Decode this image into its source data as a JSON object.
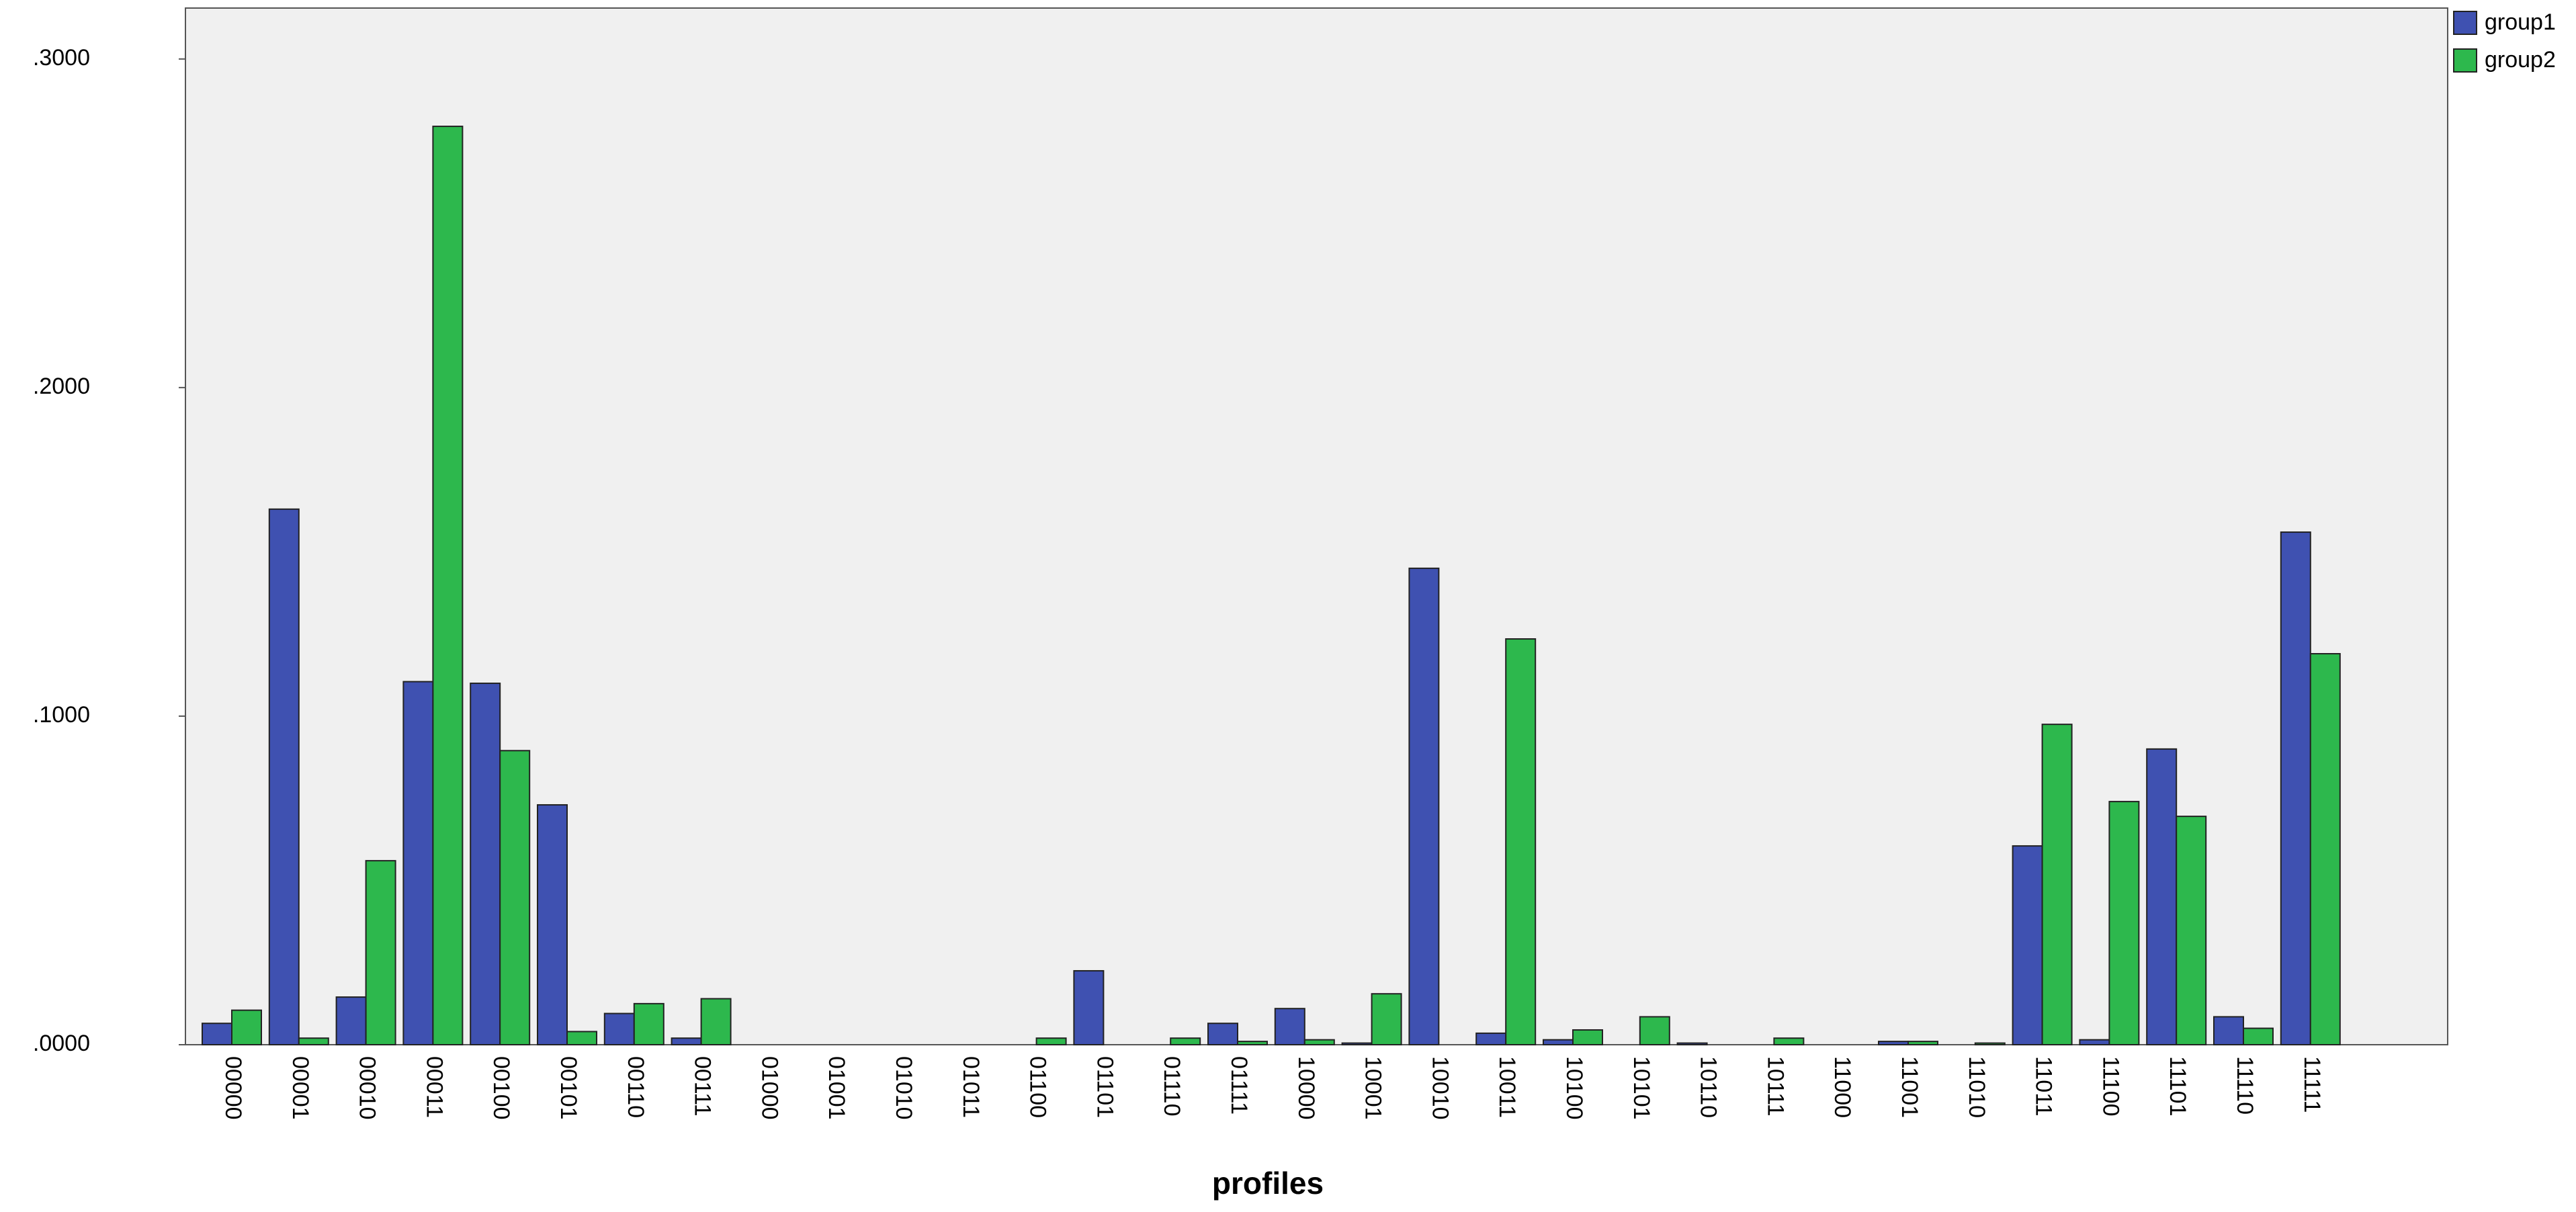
{
  "chart_data": {
    "type": "bar",
    "x_label": "profiles",
    "categories": [
      "00000",
      "00001",
      "00010",
      "00011",
      "00100",
      "00101",
      "00110",
      "00111",
      "01000",
      "01001",
      "01010",
      "01011",
      "01100",
      "01101",
      "01110",
      "01111",
      "10000",
      "10001",
      "10010",
      "10011",
      "10100",
      "10101",
      "10110",
      "10111",
      "11000",
      "11001",
      "11010",
      "11011",
      "11100",
      "11101",
      "11110",
      "11111"
    ],
    "series": [
      {
        "name": "group1",
        "color": "#3f51b1",
        "values": [
          0.0065,
          0.163,
          0.0145,
          0.1105,
          0.11,
          0.073,
          0.0095,
          0.002,
          0,
          0,
          0,
          0,
          0,
          0.0225,
          0,
          0.0065,
          0.011,
          0.0005,
          0.145,
          0.0035,
          0.0015,
          0,
          0.0005,
          0,
          0,
          0.001,
          0,
          0.0605,
          0.0015,
          0.09,
          0.0085,
          0.156
        ]
      },
      {
        "name": "group2",
        "color": "#2db84d",
        "values": [
          0.0105,
          0.002,
          0.056,
          0.2795,
          0.0895,
          0.004,
          0.0125,
          0.014,
          0,
          0,
          0,
          0,
          0.002,
          0,
          0.002,
          0.001,
          0.0015,
          0.0155,
          0,
          0.1235,
          0.0045,
          0.0085,
          0,
          0.002,
          0,
          0.001,
          0.0005,
          0.0975,
          0.074,
          0.0695,
          0.005,
          0.119
        ]
      }
    ],
    "ylim": [
      0,
      0.3155
    ],
    "yticks": [
      {
        "value": 0,
        "label": ".0000"
      },
      {
        "value": 0.1,
        "label": ".1000"
      },
      {
        "value": 0.2,
        "label": ".2000"
      },
      {
        "value": 0.3,
        "label": ".3000"
      }
    ],
    "legend": "top-right-outside"
  }
}
